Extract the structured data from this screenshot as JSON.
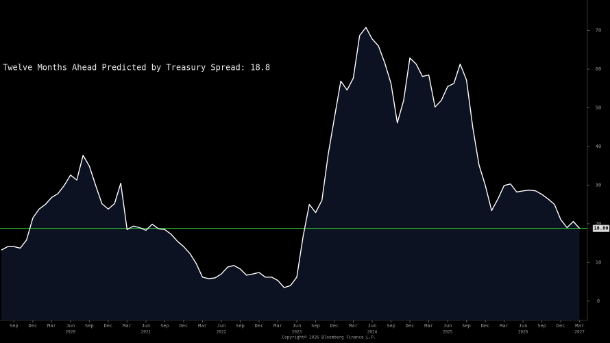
{
  "chart_data": {
    "type": "area-line",
    "title": "Twelve Months Ahead Predicted by Treasury Spread: 18.8",
    "source": "Copyright© 2026 Bloomberg Finance L.P.",
    "x": [
      "2019-07",
      "2019-08",
      "2019-09",
      "2019-10",
      "2019-11",
      "2019-12",
      "2020-01",
      "2020-02",
      "2020-03",
      "2020-04",
      "2020-05",
      "2020-06",
      "2020-07",
      "2020-08",
      "2020-09",
      "2020-10",
      "2020-11",
      "2020-12",
      "2021-01",
      "2021-02",
      "2021-03",
      "2021-04",
      "2021-05",
      "2021-06",
      "2021-07",
      "2021-08",
      "2021-09",
      "2021-10",
      "2021-11",
      "2021-12",
      "2022-01",
      "2022-02",
      "2022-03",
      "2022-04",
      "2022-05",
      "2022-06",
      "2022-07",
      "2022-08",
      "2022-09",
      "2022-10",
      "2022-11",
      "2022-12",
      "2023-01",
      "2023-02",
      "2023-03",
      "2023-04",
      "2023-05",
      "2023-06",
      "2023-07",
      "2023-08",
      "2023-09",
      "2023-10",
      "2023-11",
      "2023-12",
      "2024-01",
      "2024-02",
      "2024-03",
      "2024-04",
      "2024-05",
      "2024-06",
      "2024-07",
      "2024-08",
      "2024-09",
      "2024-10",
      "2024-11",
      "2024-12",
      "2025-01",
      "2025-02",
      "2025-03",
      "2025-04",
      "2025-05",
      "2025-06",
      "2025-07",
      "2025-08",
      "2025-09",
      "2025-10",
      "2025-11",
      "2025-12",
      "2026-01",
      "2026-02",
      "2026-03",
      "2026-04",
      "2026-05",
      "2026-06",
      "2026-07",
      "2026-08",
      "2026-09",
      "2026-10",
      "2026-11",
      "2026-12",
      "2027-01",
      "2027-02",
      "2027-03"
    ],
    "series": [
      {
        "color": "#ffffff",
        "fill": "#0c1222",
        "values": [
          13.2,
          14.1,
          14.1,
          13.7,
          15.8,
          21.5,
          23.8,
          25,
          26.8,
          27.8,
          29.9,
          32.6,
          31.3,
          37.7,
          34.9,
          29.9,
          25.2,
          23.8,
          25.2,
          30.5,
          18.5,
          19.4,
          19,
          18.3,
          19.9,
          18.7,
          18.5,
          17.3,
          15.5,
          14.1,
          12.3,
          9.7,
          6.2,
          5.8,
          6,
          7,
          8.8,
          9.2,
          8.3,
          6.7,
          7,
          7.4,
          6.2,
          6.2,
          5.3,
          3.5,
          4,
          6.2,
          16.7,
          25,
          22.9,
          26.1,
          37.9,
          47.5,
          56.9,
          54.6,
          57.7,
          68.7,
          70.8,
          67.8,
          66,
          61.6,
          56.3,
          46.1,
          51.9,
          62.9,
          61.3,
          58.1,
          58.5,
          50.2,
          51.9,
          55.5,
          56.3,
          61.3,
          57.2,
          44.9,
          35.2,
          29.9,
          23.4,
          26.4,
          29.9,
          30.3,
          28.2,
          28.5,
          28.7,
          28.5,
          27.6,
          26.4,
          25,
          21.1,
          19,
          20.6,
          18.8
        ]
      }
    ],
    "reference": {
      "value": 18.8,
      "label": "18.80",
      "color": "#2fc02f"
    },
    "ylim": [
      -5,
      77
    ],
    "yticks": [
      0,
      10,
      20,
      30,
      40,
      50,
      60,
      70
    ],
    "xticks": [
      {
        "value": "2019-09",
        "label": "Sep"
      },
      {
        "value": "2019-12",
        "label": "Dec"
      },
      {
        "value": "2020-03",
        "label": "Mar"
      },
      {
        "value": "2020-06",
        "label": "Jun"
      },
      {
        "value": "2020-09",
        "label": "Sep"
      },
      {
        "value": "2020-12",
        "label": "Dec"
      },
      {
        "value": "2021-03",
        "label": "Mar"
      },
      {
        "value": "2021-06",
        "label": "Jun"
      },
      {
        "value": "2021-09",
        "label": "Sep"
      },
      {
        "value": "2021-12",
        "label": "Dec"
      },
      {
        "value": "2022-03",
        "label": "Mar"
      },
      {
        "value": "2022-06",
        "label": "Jun"
      },
      {
        "value": "2022-09",
        "label": "Sep"
      },
      {
        "value": "2022-12",
        "label": "Dec"
      },
      {
        "value": "2023-03",
        "label": "Mar"
      },
      {
        "value": "2023-06",
        "label": "Jun"
      },
      {
        "value": "2023-09",
        "label": "Sep"
      },
      {
        "value": "2023-12",
        "label": "Dec"
      },
      {
        "value": "2024-03",
        "label": "Mar"
      },
      {
        "value": "2024-06",
        "label": "Jun"
      },
      {
        "value": "2024-09",
        "label": "Sep"
      },
      {
        "value": "2024-12",
        "label": "Dec"
      },
      {
        "value": "2025-03",
        "label": "Mar"
      },
      {
        "value": "2025-06",
        "label": "Jun"
      },
      {
        "value": "2025-09",
        "label": "Sep"
      },
      {
        "value": "2025-12",
        "label": "Dec"
      },
      {
        "value": "2026-03",
        "label": "Mar"
      },
      {
        "value": "2026-06",
        "label": "Jun"
      },
      {
        "value": "2026-09",
        "label": "Sep"
      },
      {
        "value": "2026-12",
        "label": "Dec"
      },
      {
        "value": "2027-03",
        "label": "Mar"
      }
    ],
    "year_ticks": [
      {
        "value": "2020-06",
        "label": "2020"
      },
      {
        "value": "2021-06",
        "label": "2021"
      },
      {
        "value": "2022-06",
        "label": "2022"
      },
      {
        "value": "2023-06",
        "label": "2023"
      },
      {
        "value": "2024-06",
        "label": "2024"
      },
      {
        "value": "2025-06",
        "label": "2025"
      },
      {
        "value": "2026-06",
        "label": "2026"
      },
      {
        "value": "2027-03",
        "label": "2027"
      }
    ]
  }
}
